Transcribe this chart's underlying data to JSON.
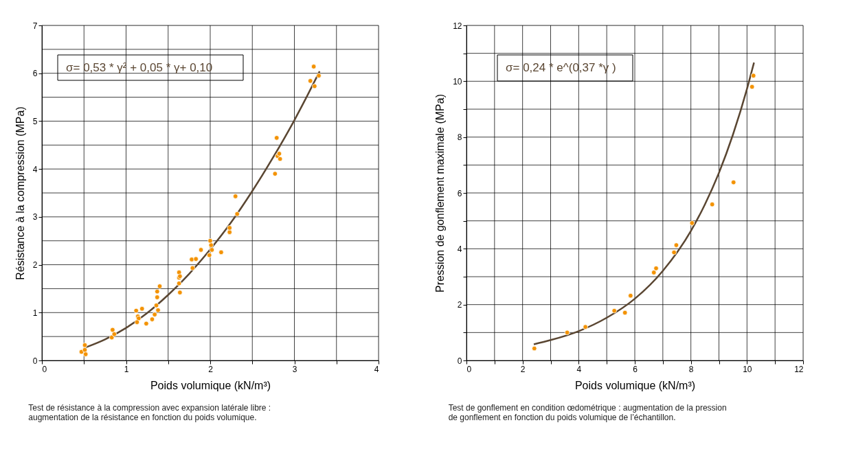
{
  "chart_data": [
    {
      "type": "scatter",
      "xlabel": "Poids volumique  (kN/m³)",
      "ylabel": "Résistance à la compression (MPa)",
      "xlim": [
        0,
        4
      ],
      "ylim": [
        0,
        7
      ],
      "xticks": [
        0,
        {
          "value": 0.5,
          "label": null
        },
        1,
        {
          "value": 1.5,
          "label": null
        },
        2,
        {
          "value": 2.5,
          "label": null
        },
        3,
        {
          "value": 3.5,
          "label": null
        },
        4
      ],
      "yticks": [
        0,
        {
          "value": 0.5,
          "label": null
        },
        1,
        {
          "value": 1.5,
          "label": null
        },
        2,
        {
          "value": 2.5,
          "label": null
        },
        3,
        {
          "value": 3.5,
          "label": null
        },
        4,
        {
          "value": 4.5,
          "label": null
        },
        5,
        {
          "value": 5.5,
          "label": null
        },
        6,
        {
          "value": 6.5,
          "label": null
        },
        7
      ],
      "grid": true,
      "marker": "circle",
      "annotations": [
        "σ= 0,53 * γ² + 0,05 * γ+ 0,10",
        "Test de résistance à la compression avec expansion latérale libre : augmentation de la résistance en fonction du poids volumique."
      ],
      "series": [
        {
          "color": "#f39200",
          "x": [
            0.51,
            0.47,
            0.51,
            0.52,
            0.84,
            0.83,
            0.86,
            1.12,
            1.19,
            1.14,
            1.15,
            1.13,
            1.24,
            1.31,
            1.34,
            1.38,
            1.36,
            1.37,
            1.37,
            1.4,
            1.63,
            1.63,
            1.64,
            1.63,
            1.64,
            1.79,
            1.78,
            1.83,
            1.89,
            1.99,
            2.02,
            2.01,
            2.0,
            2.13,
            2.23,
            2.23,
            2.32,
            2.3,
            2.77,
            2.8,
            2.82,
            2.83,
            2.79,
            3.23,
            3.29,
            3.19,
            3.24
          ],
          "values": [
            0.32,
            0.18,
            0.22,
            0.13,
            0.64,
            0.48,
            0.55,
            1.04,
            1.08,
            0.92,
            0.88,
            0.8,
            0.77,
            0.86,
            0.96,
            1.05,
            1.15,
            1.32,
            1.44,
            1.55,
            1.84,
            1.73,
            1.76,
            1.61,
            1.42,
            1.93,
            2.11,
            2.12,
            2.31,
            2.2,
            2.31,
            2.41,
            2.5,
            2.26,
            2.68,
            2.77,
            3.06,
            3.43,
            3.9,
            4.27,
            4.32,
            4.21,
            4.65,
            6.14,
            5.95,
            5.84,
            5.73
          ]
        },
        {
          "type": "line",
          "color": "#5a4632",
          "marker": "none",
          "x": [
            0.5,
            0.75,
            1.0,
            1.25,
            1.5,
            1.75,
            2.0,
            2.25,
            2.5,
            2.75,
            3.0,
            3.15,
            3.3
          ],
          "values": [
            0.26,
            0.44,
            0.68,
            0.99,
            1.37,
            1.81,
            2.32,
            2.89,
            3.54,
            4.25,
            5.02,
            5.52,
            6.04
          ]
        }
      ]
    },
    {
      "type": "scatter",
      "xlabel": "Poids volumique  (kN/m³)",
      "ylabel": "Pression de gonflement maximale (MPa)",
      "xlim": [
        0,
        12
      ],
      "ylim": [
        0,
        12
      ],
      "xticks": [
        0,
        {
          "value": 1,
          "label": null
        },
        2,
        {
          "value": 3,
          "label": null
        },
        4,
        {
          "value": 5,
          "label": null
        },
        6,
        {
          "value": 7,
          "label": null
        },
        8,
        {
          "value": 9,
          "label": null
        },
        10,
        {
          "value": 11,
          "label": null
        },
        12
      ],
      "yticks": [
        0,
        {
          "value": 1,
          "label": null
        },
        2,
        {
          "value": 3,
          "label": null
        },
        4,
        {
          "value": 5,
          "label": null
        },
        6,
        {
          "value": 7,
          "label": null
        },
        8,
        {
          "value": 9,
          "label": null
        },
        10,
        {
          "value": 11,
          "label": null
        },
        12
      ],
      "grid": true,
      "marker": "circle",
      "annotations": [
        "σ= 0,24 * e^(0,37 *γ )",
        "Test de gonflement en condition œdométrique : augmentation de la pression de gonflement en fonction du poids volumique de l’échantillon."
      ],
      "series": [
        {
          "color": "#f39200",
          "x": [
            2.42,
            3.59,
            4.24,
            5.27,
            5.65,
            5.85,
            6.68,
            6.76,
            7.4,
            7.48,
            8.04,
            8.76,
            9.52,
            10.18,
            10.23
          ],
          "values": [
            0.43,
            1.0,
            1.2,
            1.78,
            1.71,
            2.32,
            3.15,
            3.3,
            3.87,
            4.13,
            4.92,
            5.59,
            6.38,
            9.8,
            10.2
          ]
        },
        {
          "type": "line",
          "color": "#5a4632",
          "marker": "none",
          "x": [
            2.4,
            3.0,
            4.0,
            5.0,
            6.0,
            7.0,
            8.0,
            8.5,
            9.0,
            9.5,
            10.0,
            10.25
          ],
          "values": [
            0.58,
            0.73,
            1.05,
            1.53,
            2.21,
            3.21,
            4.64,
            5.59,
            6.72,
            8.09,
            9.73,
            10.67
          ]
        }
      ]
    }
  ]
}
